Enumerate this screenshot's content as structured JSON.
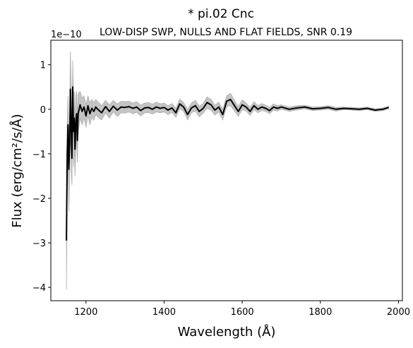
{
  "chart_data": {
    "type": "line",
    "title": "* pi.02 Cnc",
    "subtitle": "LOW-DISP SWP, NULLS AND FLAT FIELDS, SNR 0.19",
    "xlabel": "Wavelength (Å)",
    "ylabel": "Flux (erg/cm²/s/Å)",
    "y_offset_label": "1e−10",
    "xlim": [
      1110,
      2010
    ],
    "ylim": [
      -4.3,
      1.55
    ],
    "x_ticks": [
      1200,
      1400,
      1600,
      1800,
      2000
    ],
    "y_ticks": [
      1,
      0,
      -1,
      -2,
      -3,
      -4
    ],
    "y_tick_labels": [
      "1",
      "0",
      "−1",
      "−2",
      "−3",
      "−4"
    ],
    "grid": false,
    "series": [
      {
        "role": "flux",
        "color": "#000000",
        "x": [
          1150,
          1152,
          1154,
          1156,
          1158,
          1160,
          1162,
          1164,
          1166,
          1168,
          1170,
          1172,
          1174,
          1176,
          1178,
          1180,
          1185,
          1190,
          1195,
          1200,
          1205,
          1210,
          1215,
          1220,
          1225,
          1230,
          1240,
          1250,
          1260,
          1270,
          1280,
          1290,
          1300,
          1310,
          1320,
          1330,
          1340,
          1350,
          1360,
          1370,
          1380,
          1390,
          1400,
          1410,
          1420,
          1430,
          1440,
          1450,
          1460,
          1470,
          1480,
          1490,
          1500,
          1510,
          1520,
          1530,
          1540,
          1550,
          1560,
          1570,
          1580,
          1590,
          1600,
          1610,
          1620,
          1630,
          1640,
          1650,
          1660,
          1670,
          1680,
          1690,
          1700,
          1720,
          1740,
          1760,
          1780,
          1800,
          1820,
          1840,
          1860,
          1880,
          1900,
          1920,
          1940,
          1960,
          1975
        ],
        "values": [
          -2.95,
          -1.0,
          -0.35,
          -1.35,
          -0.8,
          0.45,
          -0.4,
          -1.1,
          0.5,
          -0.5,
          -0.2,
          -0.9,
          -0.3,
          -0.1,
          -0.7,
          -0.1,
          0.1,
          -0.05,
          0.05,
          -0.15,
          0.08,
          -0.1,
          0.02,
          -0.05,
          0.05,
          0.0,
          -0.08,
          0.06,
          -0.05,
          0.07,
          -0.02,
          0.05,
          0.04,
          0.06,
          0.02,
          0.05,
          -0.03,
          0.03,
          0.04,
          0.0,
          0.05,
          0.02,
          0.04,
          -0.02,
          0.03,
          -0.08,
          0.12,
          0.05,
          -0.12,
          0.03,
          0.08,
          -0.05,
          0.02,
          0.15,
          0.1,
          -0.02,
          0.05,
          -0.12,
          0.18,
          0.22,
          0.08,
          -0.05,
          0.1,
          0.05,
          -0.05,
          0.08,
          0.0,
          0.05,
          0.02,
          -0.03,
          0.05,
          0.02,
          0.05,
          0.0,
          0.03,
          0.05,
          0.01,
          0.02,
          0.04,
          0.0,
          0.02,
          0.01,
          0.0,
          0.02,
          -0.02,
          0.0,
          0.04
        ]
      },
      {
        "role": "error-band",
        "color": "#b0b0b0",
        "x": [
          1150,
          1152,
          1154,
          1156,
          1158,
          1160,
          1162,
          1164,
          1166,
          1168,
          1170,
          1172,
          1174,
          1176,
          1178,
          1180,
          1185,
          1190,
          1195,
          1200,
          1205,
          1210,
          1215,
          1220,
          1225,
          1230,
          1240,
          1250,
          1260,
          1270,
          1280,
          1290,
          1300,
          1310,
          1320,
          1330,
          1340,
          1350,
          1360,
          1370,
          1380,
          1390,
          1400,
          1410,
          1420,
          1430,
          1440,
          1450,
          1460,
          1470,
          1480,
          1490,
          1500,
          1510,
          1520,
          1530,
          1540,
          1550,
          1560,
          1570,
          1580,
          1590,
          1600,
          1610,
          1620,
          1630,
          1640,
          1650,
          1660,
          1670,
          1680,
          1690,
          1700,
          1720,
          1740,
          1760,
          1780,
          1800,
          1820,
          1840,
          1860,
          1880,
          1900,
          1920,
          1940,
          1960,
          1975
        ],
        "upper": [
          -2.2,
          -0.3,
          0.3,
          -0.6,
          -0.2,
          1.3,
          0.6,
          -0.5,
          1.1,
          0.3,
          0.4,
          -0.3,
          0.3,
          0.4,
          -0.2,
          0.35,
          0.4,
          0.25,
          0.3,
          0.1,
          0.3,
          0.15,
          0.22,
          0.15,
          0.22,
          0.17,
          0.08,
          0.2,
          0.1,
          0.2,
          0.12,
          0.18,
          0.17,
          0.18,
          0.14,
          0.17,
          0.09,
          0.14,
          0.15,
          0.11,
          0.16,
          0.12,
          0.14,
          0.08,
          0.13,
          0.02,
          0.23,
          0.15,
          0.0,
          0.14,
          0.2,
          0.07,
          0.13,
          0.28,
          0.22,
          0.09,
          0.16,
          0.0,
          0.3,
          0.36,
          0.2,
          0.06,
          0.21,
          0.14,
          0.04,
          0.17,
          0.08,
          0.13,
          0.09,
          0.04,
          0.12,
          0.08,
          0.1,
          0.05,
          0.08,
          0.09,
          0.05,
          0.06,
          0.08,
          0.04,
          0.05,
          0.04,
          0.03,
          0.05,
          0.01,
          0.03,
          0.07
        ],
        "lower": [
          -4.05,
          -2.0,
          -1.1,
          -2.3,
          -1.5,
          -0.4,
          -1.4,
          -1.7,
          -0.1,
          -1.3,
          -0.8,
          -1.5,
          -0.9,
          -0.6,
          -1.2,
          -0.55,
          -0.2,
          -0.35,
          -0.2,
          -0.4,
          -0.15,
          -0.35,
          -0.18,
          -0.25,
          -0.12,
          -0.17,
          -0.24,
          -0.08,
          -0.2,
          -0.06,
          -0.16,
          -0.08,
          -0.09,
          -0.06,
          -0.1,
          -0.07,
          -0.15,
          -0.08,
          -0.07,
          -0.11,
          -0.06,
          -0.08,
          -0.06,
          -0.12,
          -0.07,
          -0.18,
          0.01,
          -0.05,
          -0.24,
          -0.08,
          -0.04,
          -0.17,
          -0.09,
          0.02,
          -0.02,
          -0.13,
          -0.06,
          -0.24,
          0.06,
          0.08,
          -0.04,
          -0.16,
          -0.01,
          -0.04,
          -0.14,
          -0.01,
          -0.08,
          -0.03,
          -0.05,
          -0.1,
          -0.02,
          -0.04,
          0.0,
          -0.05,
          -0.02,
          0.01,
          -0.03,
          -0.02,
          0.0,
          -0.04,
          -0.01,
          -0.02,
          -0.03,
          -0.01,
          -0.05,
          -0.03,
          0.01
        ]
      }
    ]
  }
}
